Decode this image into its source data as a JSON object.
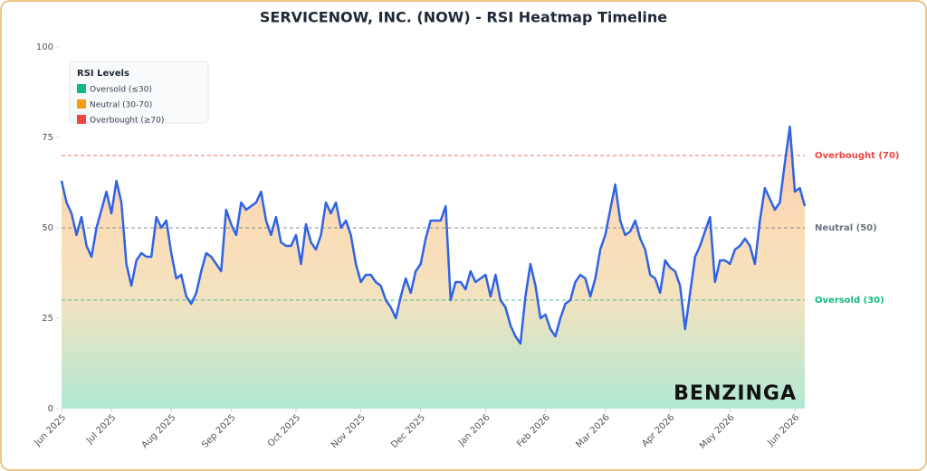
{
  "chart_data": {
    "type": "line",
    "title": "SERVICENOW, INC. (NOW) - RSI Heatmap Timeline",
    "categories": [
      "Jun 2025",
      null,
      null,
      null,
      null,
      null,
      null,
      null,
      null,
      null,
      "Jul 2025",
      null,
      null,
      null,
      null,
      null,
      null,
      null,
      null,
      null,
      null,
      null,
      "Aug 2025",
      null,
      null,
      null,
      null,
      null,
      null,
      null,
      null,
      null,
      null,
      null,
      "Sep 2025",
      null,
      null,
      null,
      null,
      null,
      null,
      null,
      null,
      null,
      null,
      null,
      null,
      "Oct 2025",
      null,
      null,
      null,
      null,
      null,
      null,
      null,
      null,
      null,
      null,
      null,
      null,
      "Nov 2025",
      null,
      null,
      null,
      null,
      null,
      null,
      null,
      null,
      null,
      null,
      null,
      "Dec 2025",
      null,
      null,
      null,
      null,
      null,
      null,
      null,
      null,
      null,
      null,
      null,
      null,
      "Jan 2026",
      null,
      null,
      null,
      null,
      null,
      null,
      null,
      null,
      null,
      null,
      null,
      "Feb 2026",
      null,
      null,
      null,
      null,
      null,
      null,
      null,
      null,
      null,
      null,
      null,
      "Mar 2026",
      null,
      null,
      null,
      null,
      null,
      null,
      null,
      null,
      null,
      null,
      null,
      null,
      "Apr 2026",
      null,
      null,
      null,
      null,
      null,
      null,
      null,
      null,
      null,
      null,
      null,
      "May 2026",
      null,
      null,
      null,
      null,
      null,
      null,
      null,
      null,
      null,
      null,
      null,
      null,
      "Jun 2026",
      null,
      null
    ],
    "values": [
      63,
      57,
      54,
      48,
      53,
      45,
      42,
      50,
      55,
      60,
      54,
      63,
      57,
      40,
      34,
      41,
      43,
      42,
      42,
      53,
      50,
      52,
      43,
      36,
      37,
      31,
      29,
      32,
      38,
      43,
      42,
      40,
      38,
      55,
      51,
      48,
      57,
      55,
      56,
      57,
      60,
      52,
      48,
      53,
      46,
      45,
      45,
      48,
      40,
      51,
      46,
      44,
      48,
      57,
      54,
      57,
      50,
      52,
      48,
      40,
      35,
      37,
      37,
      35,
      34,
      30,
      28,
      25,
      31,
      36,
      32,
      38,
      40,
      47,
      52,
      52,
      52,
      56,
      30,
      35,
      35,
      33,
      38,
      35,
      36,
      37,
      31,
      37,
      30,
      28,
      23,
      20,
      18,
      31,
      40,
      34,
      25,
      26,
      22,
      20,
      25,
      29,
      30,
      35,
      37,
      36,
      31,
      36,
      44,
      48,
      55,
      62,
      52,
      48,
      49,
      52,
      47,
      44,
      37,
      36,
      32,
      41,
      39,
      38,
      34,
      22,
      32,
      42,
      45,
      49,
      53,
      35,
      41,
      41,
      40,
      44,
      45,
      47,
      45,
      40,
      52,
      61,
      58,
      55,
      57,
      68,
      78,
      60,
      61,
      56
    ],
    "color": "#2f63e6",
    "ylim": [
      0,
      100
    ],
    "yticks": [
      0,
      25,
      50,
      75,
      100
    ],
    "reference_lines": [
      {
        "value": 70,
        "label": "Overbought (70)",
        "color": "#ef4444"
      },
      {
        "value": 50,
        "label": "Neutral (50)",
        "color": "#6b7280"
      },
      {
        "value": 30,
        "label": "Oversold (30)",
        "color": "#10b981"
      }
    ],
    "legend": {
      "title": "RSI Levels",
      "items": [
        {
          "label": "Oversold (≤30)",
          "color": "#10b981"
        },
        {
          "label": "Neutral (30-70)",
          "color": "#f59e0b"
        },
        {
          "label": "Overbought (≥70)",
          "color": "#ef4444"
        }
      ]
    },
    "watermark": "BENZINGA"
  }
}
